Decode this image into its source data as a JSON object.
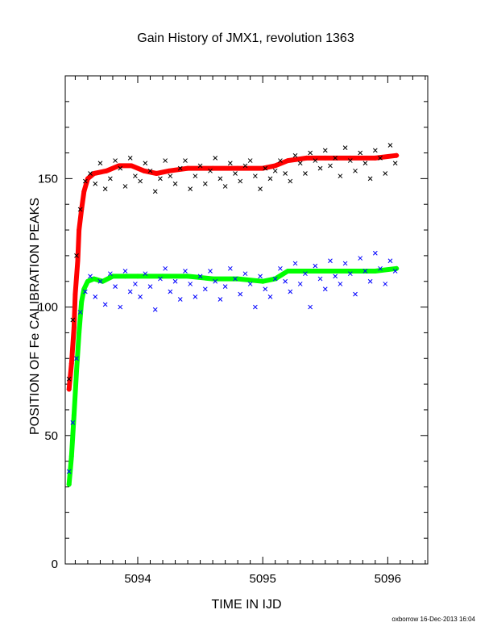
{
  "colors": {
    "upper_series": "#ff0000",
    "lower_series": "#00ff00",
    "upper_scatter": "#000000",
    "lower_scatter": "#0000ff",
    "axis": "#000000"
  },
  "footer": "oxborrow 16-Dec-2013 16:04",
  "chart_data": {
    "type": "scatter",
    "title": "Gain History of JMX1, revolution 1363",
    "xlabel": "TIME IN IJD",
    "ylabel": "POSITION OF Fe CALIBRATION PEAKS",
    "xlim": [
      5093.42,
      5096.32
    ],
    "ylim": [
      0,
      190
    ],
    "xticks": [
      5094,
      5095,
      5096
    ],
    "yticks": [
      0,
      50,
      100,
      150
    ],
    "grid": false,
    "legend": "none",
    "series": [
      {
        "color": "#ff0000",
        "marker": "+",
        "x": [
          5093.45,
          5093.47,
          5093.49,
          5093.5,
          5093.52,
          5093.53,
          5093.55,
          5093.57,
          5093.6,
          5093.65,
          5093.75,
          5093.85,
          5093.95,
          5094.05,
          5094.15,
          5094.25,
          5094.4,
          5094.6,
          5094.8,
          5095.0,
          5095.1,
          5095.2,
          5095.35,
          5095.5,
          5095.7,
          5095.9,
          5096.07
        ],
        "y": [
          68,
          78,
          92,
          105,
          118,
          130,
          138,
          145,
          150,
          152,
          153,
          155,
          155,
          153,
          152,
          153,
          154,
          154,
          154,
          154,
          155,
          157,
          158,
          158,
          158,
          158,
          159
        ]
      },
      {
        "color": "#00ff00",
        "marker": "+",
        "x": [
          5093.45,
          5093.47,
          5093.49,
          5093.51,
          5093.53,
          5093.55,
          5093.57,
          5093.6,
          5093.65,
          5093.72,
          5093.8,
          5093.9,
          5094.0,
          5094.2,
          5094.4,
          5094.6,
          5094.8,
          5095.0,
          5095.1,
          5095.2,
          5095.35,
          5095.5,
          5095.7,
          5095.9,
          5096.07
        ],
        "y": [
          31,
          42,
          58,
          75,
          90,
          102,
          107,
          110,
          111,
          110,
          112,
          112,
          112,
          112,
          112,
          111,
          111,
          110,
          111,
          114,
          114,
          114,
          114,
          114,
          115
        ]
      },
      {
        "color": "#000000",
        "marker": "x",
        "x": [
          5093.45,
          5093.48,
          5093.51,
          5093.54,
          5093.58,
          5093.62,
          5093.66,
          5093.7,
          5093.74,
          5093.78,
          5093.82,
          5093.86,
          5093.9,
          5093.94,
          5093.98,
          5094.02,
          5094.06,
          5094.1,
          5094.14,
          5094.18,
          5094.22,
          5094.26,
          5094.3,
          5094.34,
          5094.38,
          5094.42,
          5094.46,
          5094.5,
          5094.54,
          5094.58,
          5094.62,
          5094.66,
          5094.7,
          5094.74,
          5094.78,
          5094.82,
          5094.86,
          5094.9,
          5094.94,
          5094.98,
          5095.02,
          5095.06,
          5095.1,
          5095.14,
          5095.18,
          5095.22,
          5095.26,
          5095.3,
          5095.34,
          5095.38,
          5095.42,
          5095.46,
          5095.5,
          5095.54,
          5095.58,
          5095.62,
          5095.66,
          5095.7,
          5095.74,
          5095.78,
          5095.82,
          5095.86,
          5095.9,
          5095.94,
          5095.98,
          5096.02,
          5096.06
        ],
        "y": [
          72,
          95,
          120,
          138,
          149,
          152,
          148,
          156,
          146,
          150,
          157,
          154,
          147,
          158,
          151,
          149,
          156,
          153,
          145,
          150,
          157,
          151,
          148,
          154,
          157,
          146,
          151,
          155,
          148,
          153,
          158,
          150,
          147,
          156,
          152,
          149,
          155,
          157,
          151,
          146,
          154,
          150,
          153,
          157,
          152,
          149,
          159,
          156,
          152,
          160,
          157,
          154,
          161,
          155,
          158,
          151,
          162,
          157,
          153,
          160,
          156,
          150,
          161,
          158,
          152,
          163,
          156
        ]
      },
      {
        "color": "#0000ff",
        "marker": "x",
        "x": [
          5093.45,
          5093.48,
          5093.51,
          5093.54,
          5093.58,
          5093.62,
          5093.66,
          5093.7,
          5093.74,
          5093.78,
          5093.82,
          5093.86,
          5093.9,
          5093.94,
          5093.98,
          5094.02,
          5094.06,
          5094.1,
          5094.14,
          5094.18,
          5094.22,
          5094.26,
          5094.3,
          5094.34,
          5094.38,
          5094.42,
          5094.46,
          5094.5,
          5094.54,
          5094.58,
          5094.62,
          5094.66,
          5094.7,
          5094.74,
          5094.78,
          5094.82,
          5094.86,
          5094.9,
          5094.94,
          5094.98,
          5095.02,
          5095.06,
          5095.1,
          5095.14,
          5095.18,
          5095.22,
          5095.26,
          5095.3,
          5095.34,
          5095.38,
          5095.42,
          5095.46,
          5095.5,
          5095.54,
          5095.58,
          5095.62,
          5095.66,
          5095.7,
          5095.74,
          5095.78,
          5095.82,
          5095.86,
          5095.9,
          5095.94,
          5095.98,
          5096.02,
          5096.06
        ],
        "y": [
          36,
          55,
          80,
          98,
          106,
          112,
          104,
          110,
          101,
          113,
          108,
          100,
          114,
          106,
          109,
          104,
          113,
          108,
          99,
          111,
          115,
          106,
          110,
          103,
          114,
          109,
          104,
          112,
          107,
          114,
          110,
          103,
          108,
          115,
          111,
          105,
          113,
          109,
          100,
          112,
          107,
          104,
          111,
          115,
          110,
          106,
          117,
          109,
          113,
          100,
          116,
          111,
          107,
          118,
          112,
          109,
          117,
          113,
          105,
          119,
          114,
          110,
          121,
          115,
          109,
          118,
          114
        ]
      }
    ]
  }
}
